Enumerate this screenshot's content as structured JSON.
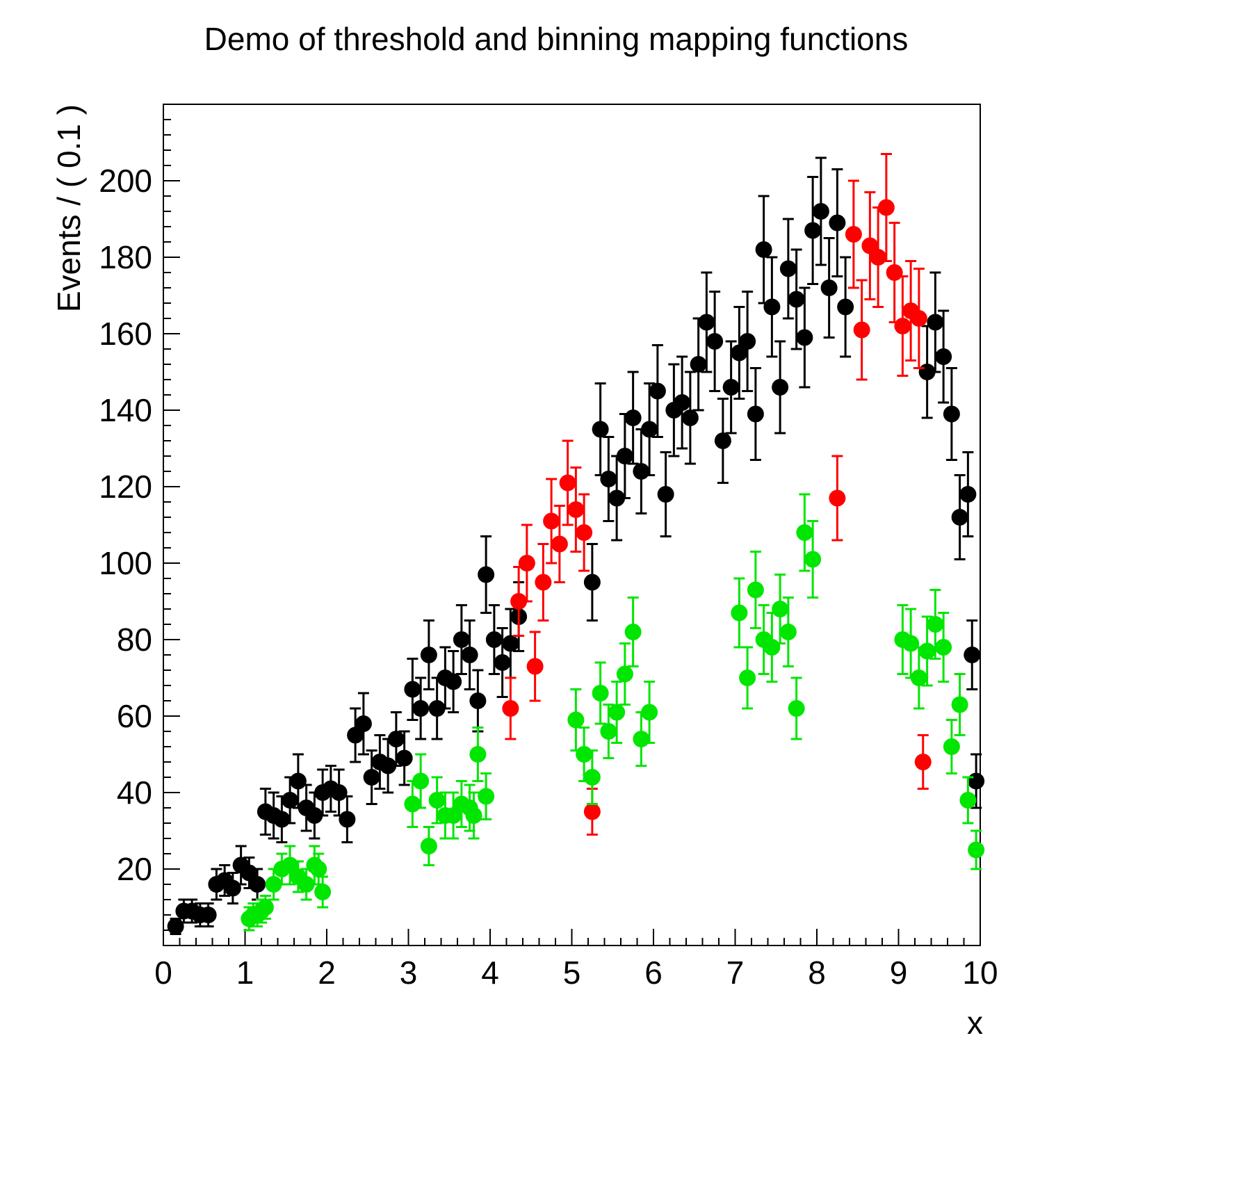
{
  "page": {
    "background": "#ffffff"
  },
  "chart_data": {
    "type": "scatter",
    "title": "Demo of threshold and binning mapping functions",
    "xlabel": "x",
    "ylabel": "Events / ( 0.1 )",
    "xlim": [
      0,
      10
    ],
    "ylim": [
      0,
      220
    ],
    "x_ticks": [
      0,
      1,
      2,
      3,
      4,
      5,
      6,
      7,
      8,
      9,
      10
    ],
    "y_ticks": [
      20,
      40,
      60,
      80,
      100,
      120,
      140,
      160,
      180,
      200
    ],
    "x_minor_step": 0.2,
    "y_minor_step": 4,
    "grid": false,
    "legend": null,
    "marker": "filled-circle",
    "error_bars": "vertical-with-caps",
    "frame_color": "#000000",
    "series": [
      {
        "name": "black",
        "color": "#000000",
        "points": [
          [
            0.15,
            5,
            2
          ],
          [
            0.25,
            9,
            3
          ],
          [
            0.35,
            9,
            3
          ],
          [
            0.45,
            8,
            3
          ],
          [
            0.55,
            8,
            3
          ],
          [
            0.65,
            16,
            4
          ],
          [
            0.75,
            17,
            4
          ],
          [
            0.85,
            15,
            4
          ],
          [
            0.95,
            21,
            5
          ],
          [
            1.05,
            19,
            4
          ],
          [
            1.15,
            16,
            4
          ],
          [
            1.25,
            35,
            6
          ],
          [
            1.35,
            34,
            6
          ],
          [
            1.45,
            33,
            6
          ],
          [
            1.55,
            38,
            6
          ],
          [
            1.65,
            43,
            7
          ],
          [
            1.75,
            36,
            6
          ],
          [
            1.85,
            34,
            6
          ],
          [
            1.95,
            40,
            6
          ],
          [
            2.05,
            41,
            6
          ],
          [
            2.15,
            40,
            6
          ],
          [
            2.25,
            33,
            6
          ],
          [
            2.35,
            55,
            7
          ],
          [
            2.45,
            58,
            8
          ],
          [
            2.55,
            44,
            7
          ],
          [
            2.65,
            48,
            7
          ],
          [
            2.75,
            47,
            7
          ],
          [
            2.85,
            54,
            7
          ],
          [
            2.95,
            49,
            7
          ],
          [
            3.05,
            67,
            8
          ],
          [
            3.15,
            62,
            8
          ],
          [
            3.25,
            76,
            9
          ],
          [
            3.35,
            62,
            8
          ],
          [
            3.45,
            70,
            8
          ],
          [
            3.55,
            69,
            8
          ],
          [
            3.65,
            80,
            9
          ],
          [
            3.75,
            76,
            9
          ],
          [
            3.85,
            64,
            8
          ],
          [
            3.95,
            97,
            10
          ],
          [
            4.05,
            80,
            9
          ],
          [
            4.15,
            74,
            9
          ],
          [
            4.25,
            79,
            9
          ],
          [
            4.35,
            86,
            9
          ],
          [
            5.25,
            95,
            10
          ],
          [
            5.35,
            135,
            12
          ],
          [
            5.45,
            122,
            11
          ],
          [
            5.55,
            117,
            11
          ],
          [
            5.65,
            128,
            11
          ],
          [
            5.75,
            138,
            12
          ],
          [
            5.85,
            124,
            11
          ],
          [
            5.95,
            135,
            12
          ],
          [
            6.05,
            145,
            12
          ],
          [
            6.15,
            118,
            11
          ],
          [
            6.25,
            140,
            12
          ],
          [
            6.35,
            142,
            12
          ],
          [
            6.45,
            138,
            12
          ],
          [
            6.55,
            152,
            12
          ],
          [
            6.65,
            163,
            13
          ],
          [
            6.75,
            158,
            13
          ],
          [
            6.85,
            132,
            11
          ],
          [
            6.95,
            146,
            12
          ],
          [
            7.05,
            155,
            12
          ],
          [
            7.15,
            158,
            13
          ],
          [
            7.25,
            139,
            12
          ],
          [
            7.35,
            182,
            14
          ],
          [
            7.45,
            167,
            13
          ],
          [
            7.55,
            146,
            12
          ],
          [
            7.65,
            177,
            13
          ],
          [
            7.75,
            169,
            13
          ],
          [
            7.85,
            159,
            13
          ],
          [
            7.95,
            187,
            14
          ],
          [
            8.05,
            192,
            14
          ],
          [
            8.15,
            172,
            13
          ],
          [
            8.25,
            189,
            14
          ],
          [
            8.35,
            167,
            13
          ],
          [
            9.35,
            150,
            12
          ],
          [
            9.45,
            163,
            13
          ],
          [
            9.55,
            154,
            12
          ],
          [
            9.65,
            139,
            12
          ],
          [
            9.75,
            112,
            11
          ],
          [
            9.85,
            118,
            11
          ],
          [
            9.9,
            76,
            9
          ],
          [
            9.95,
            43,
            7
          ]
        ]
      },
      {
        "name": "red",
        "color": "#ff0000",
        "points": [
          [
            4.25,
            62,
            8
          ],
          [
            4.35,
            90,
            9
          ],
          [
            4.45,
            100,
            10
          ],
          [
            4.55,
            73,
            9
          ],
          [
            4.65,
            95,
            10
          ],
          [
            4.75,
            111,
            11
          ],
          [
            4.85,
            105,
            10
          ],
          [
            4.95,
            121,
            11
          ],
          [
            5.05,
            114,
            11
          ],
          [
            5.15,
            108,
            10
          ],
          [
            5.25,
            35,
            6
          ],
          [
            8.25,
            117,
            11
          ],
          [
            8.45,
            186,
            14
          ],
          [
            8.55,
            161,
            13
          ],
          [
            8.65,
            183,
            14
          ],
          [
            8.75,
            180,
            13
          ],
          [
            8.85,
            193,
            14
          ],
          [
            8.95,
            176,
            13
          ],
          [
            9.05,
            162,
            13
          ],
          [
            9.15,
            166,
            13
          ],
          [
            9.25,
            164,
            13
          ],
          [
            9.3,
            48,
            7
          ]
        ]
      },
      {
        "name": "green",
        "color": "#00e600",
        "points": [
          [
            1.05,
            7,
            3
          ],
          [
            1.1,
            8,
            3
          ],
          [
            1.15,
            8,
            3
          ],
          [
            1.2,
            9,
            3
          ],
          [
            1.25,
            10,
            3
          ],
          [
            1.35,
            16,
            4
          ],
          [
            1.45,
            20,
            4
          ],
          [
            1.55,
            21,
            5
          ],
          [
            1.65,
            18,
            4
          ],
          [
            1.75,
            16,
            4
          ],
          [
            1.85,
            21,
            5
          ],
          [
            1.9,
            20,
            4
          ],
          [
            1.95,
            14,
            4
          ],
          [
            3.05,
            37,
            6
          ],
          [
            3.15,
            43,
            7
          ],
          [
            3.25,
            26,
            5
          ],
          [
            3.35,
            38,
            6
          ],
          [
            3.45,
            34,
            6
          ],
          [
            3.55,
            34,
            6
          ],
          [
            3.65,
            37,
            6
          ],
          [
            3.75,
            36,
            6
          ],
          [
            3.8,
            34,
            6
          ],
          [
            3.85,
            50,
            7
          ],
          [
            3.95,
            39,
            6
          ],
          [
            5.05,
            59,
            8
          ],
          [
            5.15,
            50,
            7
          ],
          [
            5.25,
            44,
            7
          ],
          [
            5.35,
            66,
            8
          ],
          [
            5.45,
            56,
            7
          ],
          [
            5.55,
            61,
            8
          ],
          [
            5.65,
            71,
            8
          ],
          [
            5.75,
            82,
            9
          ],
          [
            5.85,
            54,
            7
          ],
          [
            5.95,
            61,
            8
          ],
          [
            7.05,
            87,
            9
          ],
          [
            7.15,
            70,
            8
          ],
          [
            7.25,
            93,
            10
          ],
          [
            7.35,
            80,
            9
          ],
          [
            7.45,
            78,
            9
          ],
          [
            7.55,
            88,
            9
          ],
          [
            7.65,
            82,
            9
          ],
          [
            7.75,
            62,
            8
          ],
          [
            7.85,
            108,
            10
          ],
          [
            7.95,
            101,
            10
          ],
          [
            9.05,
            80,
            9
          ],
          [
            9.15,
            79,
            9
          ],
          [
            9.25,
            70,
            8
          ],
          [
            9.35,
            77,
            9
          ],
          [
            9.45,
            84,
            9
          ],
          [
            9.55,
            78,
            9
          ],
          [
            9.65,
            52,
            7
          ],
          [
            9.75,
            63,
            8
          ],
          [
            9.85,
            38,
            6
          ],
          [
            9.95,
            25,
            5
          ]
        ]
      }
    ]
  }
}
